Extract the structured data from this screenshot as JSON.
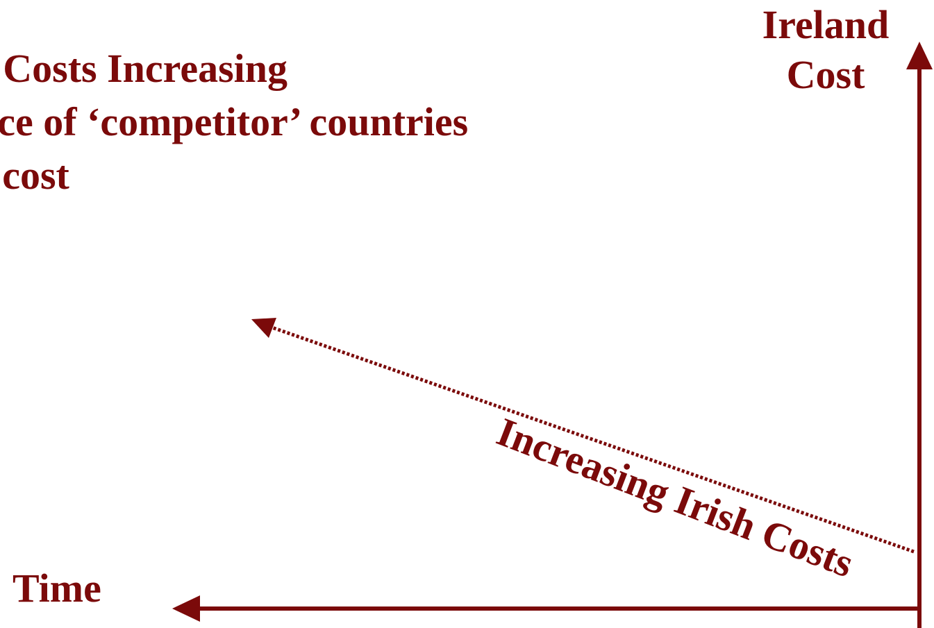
{
  "colors": {
    "accent": "#7b0a0a",
    "background": "#ffffff"
  },
  "title": {
    "lines": [
      "e Costs Increasing",
      "nce of ‘competitor’ countries",
      "r cost"
    ]
  },
  "axes": {
    "y_label_line1": "Ireland",
    "y_label_line2": "Cost",
    "x_label": "Time"
  },
  "trend": {
    "label": "Increasing Irish Costs"
  }
}
